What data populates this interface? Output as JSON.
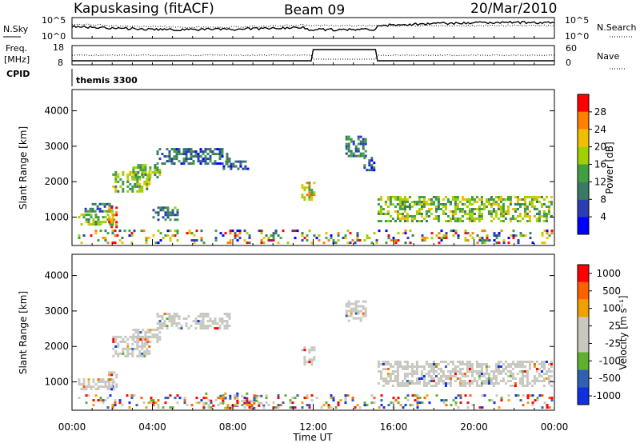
{
  "header": {
    "station": "Kapuskasing (fitACF)",
    "beam": "Beam 09",
    "date": "20/Mar/2010"
  },
  "status_panels": {
    "nsky_label": "N.Sky",
    "nsky_ticks": [
      "10^5",
      "10^0"
    ],
    "nsearch_label": "N.Search",
    "nsearch_ticks": [
      "10^5",
      "10^0"
    ],
    "freq_label": "Freq.",
    "freq_unit": "[MHz]",
    "freq_ticks": [
      "18",
      "8"
    ],
    "nave_label": "Nave",
    "nave_ticks": [
      "60",
      "0"
    ],
    "cpid_label": "CPID",
    "cpid_value": "themis 3300"
  },
  "chart_data": [
    {
      "type": "heatmap",
      "parameter": "Power",
      "ylabel": "Slant Range [km]",
      "xlabel": "",
      "x_range_hours": [
        0,
        24
      ],
      "ylim": [
        200,
        4600
      ],
      "yticks": [
        "1000",
        "2000",
        "3000",
        "4000"
      ],
      "colorbar": {
        "title": "Power [dB]",
        "ticks": [
          "4",
          "8",
          "12",
          "16",
          "20",
          "24",
          "28"
        ]
      },
      "regions": [
        {
          "t0": 0.3,
          "t1": 2.0,
          "r0": 800,
          "r1": 1100,
          "level": 0.5
        },
        {
          "t0": 0.5,
          "t1": 2.0,
          "r0": 1150,
          "r1": 1400,
          "level": 0.3
        },
        {
          "t0": 1.8,
          "t1": 2.2,
          "r0": 700,
          "r1": 1300,
          "level": 0.8
        },
        {
          "t0": 2.0,
          "t1": 3.8,
          "r0": 1700,
          "r1": 2300,
          "level": 0.55
        },
        {
          "t0": 3.0,
          "t1": 4.4,
          "r0": 2100,
          "r1": 2500,
          "level": 0.45
        },
        {
          "t0": 4.2,
          "t1": 7.8,
          "r0": 2500,
          "r1": 2950,
          "level": 0.25
        },
        {
          "t0": 7.5,
          "t1": 8.8,
          "r0": 2350,
          "r1": 2600,
          "level": 0.2
        },
        {
          "t0": 4.0,
          "t1": 5.2,
          "r0": 900,
          "r1": 1300,
          "level": 0.3
        },
        {
          "t0": 11.4,
          "t1": 12.0,
          "r0": 1500,
          "r1": 2000,
          "level": 0.65
        },
        {
          "t0": 13.6,
          "t1": 14.6,
          "r0": 2700,
          "r1": 3300,
          "level": 0.3
        },
        {
          "t0": 14.5,
          "t1": 15.0,
          "r0": 2300,
          "r1": 2700,
          "level": 0.2
        },
        {
          "t0": 15.2,
          "t1": 23.9,
          "r0": 900,
          "r1": 1600,
          "level": 0.5
        },
        {
          "t0": 0.3,
          "t1": 23.9,
          "r0": 250,
          "r1": 650,
          "level": 0.5
        }
      ]
    },
    {
      "type": "heatmap",
      "parameter": "Velocity",
      "ylabel": "Slant Range [km]",
      "xlabel": "Time UT",
      "x_range_hours": [
        0,
        24
      ],
      "ylim": [
        200,
        4600
      ],
      "yticks": [
        "1000",
        "2000",
        "3000",
        "4000"
      ],
      "xticks": [
        "00:00",
        "04:00",
        "08:00",
        "12:00",
        "16:00",
        "20:00",
        "00:00"
      ],
      "colorbar": {
        "title": "Velocity [m s⁻¹]",
        "ticks": [
          "1000",
          "500",
          "100",
          "25",
          "-25",
          "-100",
          "-500",
          "-1000"
        ]
      },
      "regions": [
        {
          "t0": 0.3,
          "t1": 2.0,
          "r0": 800,
          "r1": 1100,
          "level": 0.5
        },
        {
          "t0": 1.8,
          "t1": 2.2,
          "r0": 700,
          "r1": 1300,
          "level": 0.4
        },
        {
          "t0": 2.0,
          "t1": 3.8,
          "r0": 1700,
          "r1": 2300,
          "level": 0.5
        },
        {
          "t0": 3.0,
          "t1": 4.4,
          "r0": 2100,
          "r1": 2500,
          "level": 0.5
        },
        {
          "t0": 4.2,
          "t1": 7.8,
          "r0": 2500,
          "r1": 2950,
          "level": 0.5
        },
        {
          "t0": 11.4,
          "t1": 12.0,
          "r0": 1500,
          "r1": 2000,
          "level": 0.5
        },
        {
          "t0": 13.6,
          "t1": 14.6,
          "r0": 2700,
          "r1": 3300,
          "level": 0.5
        },
        {
          "t0": 15.2,
          "t1": 23.9,
          "r0": 900,
          "r1": 1600,
          "level": 0.5
        },
        {
          "t0": 6.5,
          "t1": 9.5,
          "r0": 250,
          "r1": 700,
          "level": 0.3
        },
        {
          "t0": 0.3,
          "t1": 23.9,
          "r0": 250,
          "r1": 650,
          "level": 0.5
        }
      ]
    }
  ],
  "colors": {
    "power_scale": [
      "#0000ff",
      "#2a3db5",
      "#3a7a64",
      "#40a040",
      "#a0d000",
      "#f0c000",
      "#ff8000",
      "#ff0000"
    ],
    "velocity_scale": [
      "#1030e0",
      "#3060b0",
      "#60b030",
      "#c8c8c0",
      "#c8c8c0",
      "#f0a000",
      "#ff6000",
      "#ff0000"
    ],
    "velocity_ground": "#c8c8c0"
  }
}
